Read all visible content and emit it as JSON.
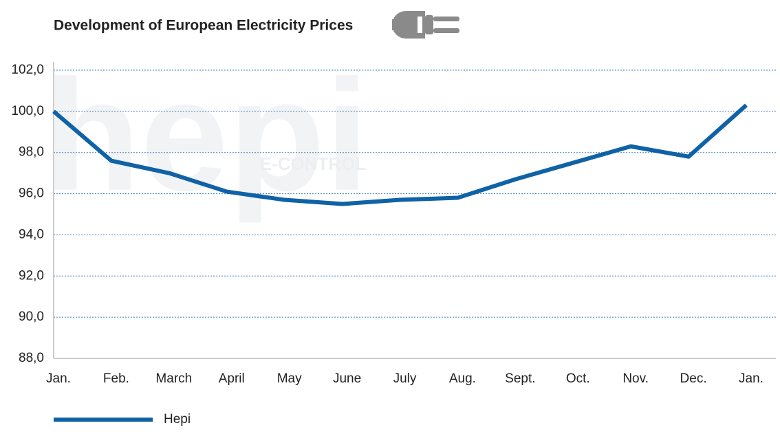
{
  "chart_data": {
    "type": "line",
    "title": "Development of European Electricity Prices",
    "watermark": [
      "E-CONTROL",
      "hepi"
    ],
    "categories": [
      "Jan.",
      "Feb.",
      "March",
      "April",
      "May",
      "June",
      "July",
      "Aug.",
      "Sept.",
      "Oct.",
      "Nov.",
      "Dec.",
      "Jan."
    ],
    "series": [
      {
        "name": "Hepi",
        "color": "#0f62a6",
        "values": [
          100.0,
          97.6,
          97.0,
          96.1,
          95.7,
          95.5,
          95.7,
          95.8,
          96.7,
          97.5,
          98.3,
          97.8,
          100.3
        ]
      }
    ],
    "ylim": [
      88,
      102
    ],
    "yticks": [
      {
        "value": 88,
        "label": "88,0"
      },
      {
        "value": 90,
        "label": "90,0"
      },
      {
        "value": 92,
        "label": "92,0"
      },
      {
        "value": 94,
        "label": "94,0"
      },
      {
        "value": 96,
        "label": "96,0"
      },
      {
        "value": 98,
        "label": "98,0"
      },
      {
        "value": 100,
        "label": "100,0"
      },
      {
        "value": 102,
        "label": "102,0"
      }
    ],
    "grid": true,
    "legend": "bottom-left"
  }
}
